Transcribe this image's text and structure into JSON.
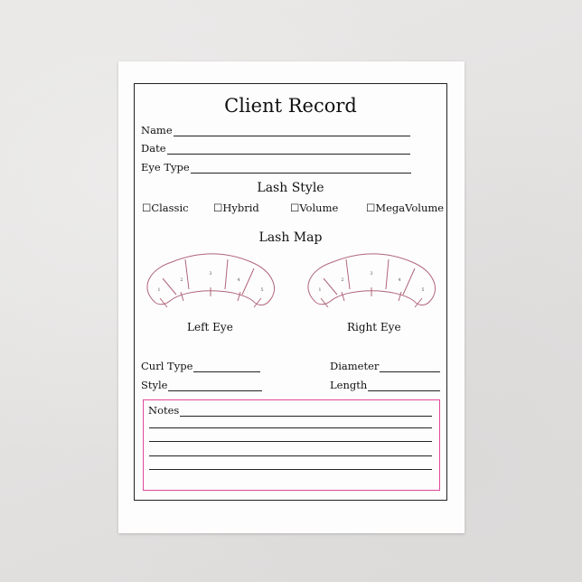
{
  "title": "Client Record",
  "fields": {
    "name": "Name",
    "date": "Date",
    "eye_type": "Eye Type"
  },
  "lash_style": {
    "heading": "Lash Style",
    "options": [
      {
        "label": "Classic",
        "checked": false
      },
      {
        "label": "Hybrid",
        "checked": false
      },
      {
        "label": "Volume",
        "checked": false
      },
      {
        "label": "MegaVolume",
        "checked": false
      }
    ]
  },
  "lash_map": {
    "heading": "Lash Map",
    "zones": [
      "1",
      "2",
      "3",
      "4",
      "5"
    ],
    "left_eye": "Left Eye",
    "right_eye": "Right Eye",
    "line_color": "#b0657a"
  },
  "details": {
    "curl_type": "Curl Type",
    "diameter": "Diameter",
    "style": "Style",
    "length": "Length"
  },
  "notes": {
    "label": "Notes",
    "border_color": "#e0489c"
  }
}
